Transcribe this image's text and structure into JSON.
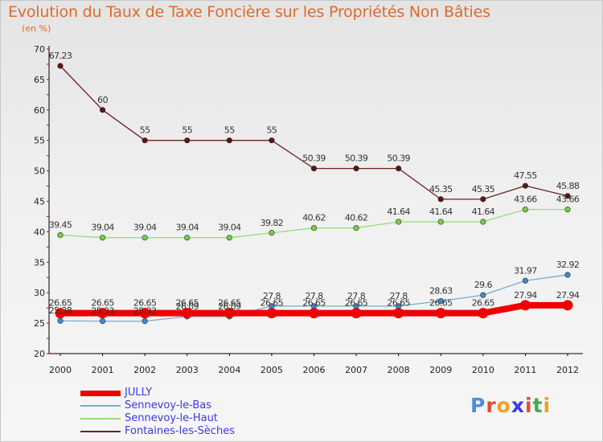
{
  "header": {
    "title": "Evolution du Taux de Taxe Foncière sur les Propriétés Non Bâties",
    "subtitle": "(en %)"
  },
  "logo": {
    "text": "Proxiti",
    "colors": [
      "#4a8fd6",
      "#e0502a",
      "#f0a020",
      "#3a3ae0",
      "#3ab04a"
    ]
  },
  "colors": {
    "title": "#e06a2a",
    "legend_text": "#3a3ae0",
    "axis": "#000000",
    "ticks_red": "#cc0000"
  },
  "chart_data": {
    "type": "line",
    "title": "Evolution du Taux de Taxe Foncière sur les Propriétés Non Bâties",
    "ylabel": "(en %)",
    "x": [
      "2000",
      "2001",
      "2002",
      "2003",
      "2004",
      "2005",
      "2006",
      "2007",
      "2008",
      "2009",
      "2010",
      "2011",
      "2012"
    ],
    "ylim": [
      20,
      70
    ],
    "yticks": [
      "20",
      "25",
      "30",
      "35",
      "40",
      "45",
      "50",
      "55",
      "60",
      "65",
      "70"
    ],
    "grid": false,
    "legend_position": "bottom-left",
    "series": [
      {
        "name": "JULLY",
        "color": "#ee0000",
        "marker": "#ee0000",
        "values": [
          26.65,
          26.65,
          26.65,
          26.65,
          26.65,
          26.65,
          26.65,
          26.65,
          26.65,
          26.65,
          26.65,
          27.94,
          27.94
        ],
        "labels": [
          "26.65",
          "26.65",
          "26.65",
          "26.65",
          "26.65",
          "26.65",
          "26.65",
          "26.65",
          "26.65",
          "26.65",
          "26.65",
          "27.94",
          "27.94"
        ]
      },
      {
        "name": "Sennevoy-le-Bas",
        "color": "#7aaad0",
        "marker": "#3f86cf",
        "values": [
          25.38,
          25.33,
          25.33,
          26.09,
          26.09,
          27.8,
          27.8,
          27.8,
          27.8,
          28.63,
          29.6,
          31.97,
          32.92
        ],
        "labels": [
          "25.38",
          "25.33",
          "25.33",
          "26.09",
          "26.09",
          "27.8",
          "27.8",
          "27.8",
          "27.8",
          "28.63",
          "29.6",
          "31.97",
          "32.92"
        ]
      },
      {
        "name": "Sennevoy-le-Haut",
        "color": "#99dd77",
        "marker": "#77cc44",
        "values": [
          39.45,
          39.04,
          39.04,
          39.04,
          39.04,
          39.82,
          40.62,
          40.62,
          41.64,
          41.64,
          41.64,
          43.66,
          43.66
        ],
        "labels": [
          "39.45",
          "39.04",
          "39.04",
          "39.04",
          "39.04",
          "39.82",
          "40.62",
          "40.62",
          "41.64",
          "41.64",
          "41.64",
          "43.66",
          "43.66"
        ]
      },
      {
        "name": "Fontaines-les-Sèches",
        "color": "#6b2222",
        "marker": "#5a1414",
        "values": [
          67.23,
          60,
          55,
          55,
          55,
          55,
          50.39,
          50.39,
          50.39,
          45.35,
          45.35,
          47.55,
          45.88
        ],
        "labels": [
          "67.23",
          "60",
          "55",
          "55",
          "55",
          "55",
          "50.39",
          "50.39",
          "50.39",
          "45.35",
          "45.35",
          "47.55",
          "45.88"
        ]
      }
    ]
  }
}
